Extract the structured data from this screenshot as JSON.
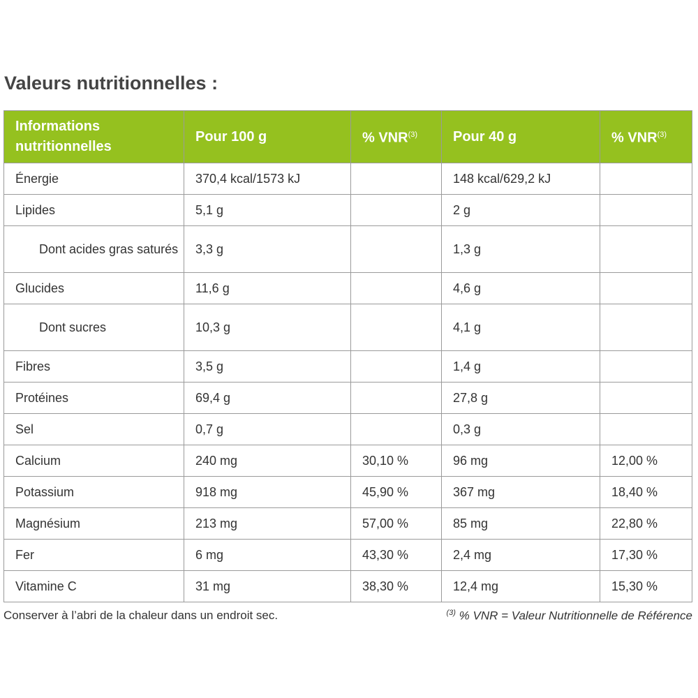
{
  "header": {
    "title": "Valeurs nutritionnelles :"
  },
  "table": {
    "columns": [
      {
        "text": "Informations nutritionnelles"
      },
      {
        "text": "Pour 100 g"
      },
      {
        "text": "% VNR",
        "sup": "(3)"
      },
      {
        "text": "Pour 40 g"
      },
      {
        "text": "% VNR",
        "sup": "(3)"
      }
    ],
    "rows": [
      {
        "label": "Énergie",
        "cells": [
          "370,4 kcal/1573 kJ",
          null,
          "148 kcal/629,2 kJ",
          null
        ]
      },
      {
        "label": "Lipides",
        "cells": [
          "5,1 g",
          null,
          "2 g",
          null
        ]
      },
      {
        "label": "Dont acides gras saturés",
        "level": 1,
        "cells": [
          "3,3 g",
          null,
          "1,3 g",
          null
        ]
      },
      {
        "label": "Glucides",
        "cells": [
          "11,6 g",
          null,
          "4,6 g",
          null
        ]
      },
      {
        "label": "Dont sucres",
        "level": 1,
        "cells": [
          "10,3 g",
          null,
          "4,1 g",
          null
        ]
      },
      {
        "label": "Fibres",
        "cells": [
          "3,5 g",
          null,
          "1,4 g",
          null
        ]
      },
      {
        "label": "Protéines",
        "cells": [
          "69,4 g",
          null,
          "27,8 g",
          null
        ]
      },
      {
        "label": "Sel",
        "cells": [
          "0,7 g",
          null,
          "0,3 g",
          null
        ]
      },
      {
        "label": "Calcium",
        "cells": [
          "240 mg",
          "30,10 %",
          "96 mg",
          "12,00 %"
        ]
      },
      {
        "label": "Potassium",
        "cells": [
          "918 mg",
          "45,90 %",
          "367 mg",
          "18,40 %"
        ]
      },
      {
        "label": "Magnésium",
        "cells": [
          "213 mg",
          "57,00 %",
          "85 mg",
          "22,80 %"
        ]
      },
      {
        "label": "Fer",
        "cells": [
          "6 mg",
          "43,30 %",
          "2,4 mg",
          "17,30 %"
        ]
      },
      {
        "label": "Vitamine C",
        "cells": [
          "31 mg",
          "38,30 %",
          "12,4 mg",
          "15,30 %"
        ]
      }
    ]
  },
  "footer": {
    "note": "Conserver à l’abri de la chaleur dans un endroit sec.",
    "reference": {
      "sup": "(3)",
      "text": "% VNR = Valeur Nutritionnelle de Référence"
    }
  }
}
